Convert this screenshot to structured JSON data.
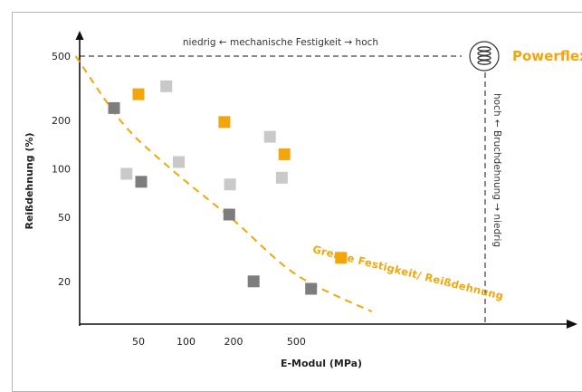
{
  "chart_data": {
    "type": "scatter",
    "xlabel": "E-Modul (MPa)",
    "ylabel": "Reißdehnung (%)",
    "x_ticks": [
      {
        "label": "50",
        "value": 50
      },
      {
        "label": "100",
        "value": 100
      },
      {
        "label": "200",
        "value": 200
      },
      {
        "label": "500",
        "value": 500
      }
    ],
    "y_ticks": [
      {
        "label": "500",
        "value": 500
      },
      {
        "label": "200",
        "value": 200
      },
      {
        "label": "100",
        "value": 100
      },
      {
        "label": "50",
        "value": 50
      },
      {
        "label": "20",
        "value": 20
      }
    ],
    "series": [
      {
        "color": "#f2a60c",
        "points": [
          {
            "x": 50,
            "y": 290
          },
          {
            "x": 175,
            "y": 195
          },
          {
            "x": 420,
            "y": 123
          },
          {
            "x": 960,
            "y": 28
          }
        ]
      },
      {
        "color": "#c9c9c9",
        "points": [
          {
            "x": 42,
            "y": 93
          },
          {
            "x": 75,
            "y": 325
          },
          {
            "x": 90,
            "y": 110
          },
          {
            "x": 190,
            "y": 80
          },
          {
            "x": 340,
            "y": 158
          },
          {
            "x": 405,
            "y": 88
          }
        ]
      },
      {
        "color": "#7d7d7d",
        "points": [
          {
            "x": 35,
            "y": 238
          },
          {
            "x": 52,
            "y": 83
          },
          {
            "x": 188,
            "y": 52
          },
          {
            "x": 268,
            "y": 20
          },
          {
            "x": 620,
            "y": 18
          }
        ]
      }
    ],
    "boundary_curve": {
      "label": "Grenze Festigkeit/ Reißdehnung",
      "color": "#f2a60c",
      "points": [
        {
          "x": 20,
          "y": 500
        },
        {
          "x": 40,
          "y": 190
        },
        {
          "x": 80,
          "y": 100
        },
        {
          "x": 200,
          "y": 48
        },
        {
          "x": 500,
          "y": 22
        },
        {
          "x": 1500,
          "y": 13
        }
      ]
    },
    "top_annotation": "niedrig ← mechanische Festigkeit → hoch",
    "right_annotation": "hoch ← Bruchdehnung → niedrig",
    "highlight": {
      "label": "Powerflex",
      "color": "#f2a60c",
      "icon": "spring-coil-icon",
      "x": 1100,
      "y": 500
    }
  }
}
